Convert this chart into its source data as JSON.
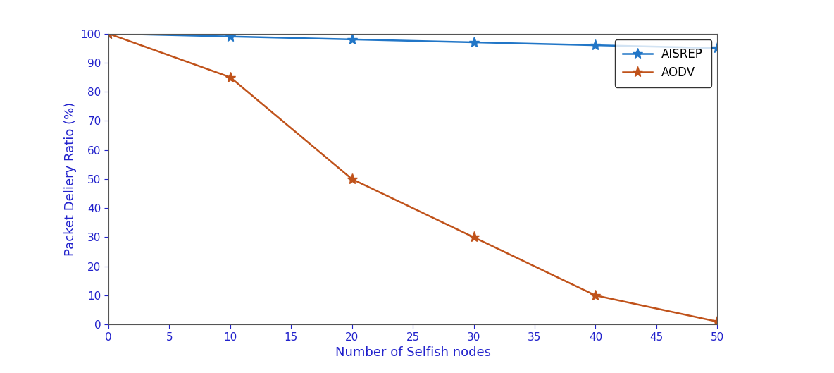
{
  "x": [
    0,
    10,
    20,
    30,
    40,
    50
  ],
  "aisrep_y": [
    100,
    99,
    98,
    97,
    96,
    95
  ],
  "aodv_y": [
    100,
    85,
    50,
    30,
    10,
    1
  ],
  "aisrep_color": "#2176c7",
  "aodv_color": "#c0521a",
  "xlabel": "Number of Selfish nodes",
  "ylabel": "Packet Deliery Ratio (%)",
  "xlabel_color": "#2222cc",
  "ylabel_color": "#2222cc",
  "tick_color": "#2222cc",
  "legend_labels": [
    "AISREP",
    "AODV"
  ],
  "xlim": [
    0,
    50
  ],
  "ylim": [
    0,
    100
  ],
  "xticks": [
    0,
    5,
    10,
    15,
    20,
    25,
    30,
    35,
    40,
    45,
    50
  ],
  "yticks": [
    0,
    10,
    20,
    30,
    40,
    50,
    60,
    70,
    80,
    90,
    100
  ],
  "background_color": "#ffffff",
  "axes_background": "#ffffff",
  "marker": "*",
  "linewidth": 1.8,
  "markersize": 11,
  "spine_color": "#555555"
}
